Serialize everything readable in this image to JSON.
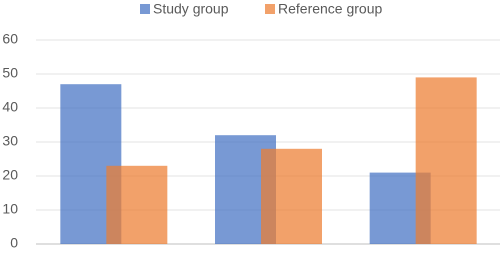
{
  "chart_data": {
    "type": "bar",
    "categories": [
      null,
      null,
      null
    ],
    "series": [
      {
        "name": "Study group",
        "color": "#4472c4",
        "values": [
          47,
          32,
          21
        ]
      },
      {
        "name": "Reference group",
        "color": "#ed7d31",
        "values": [
          23,
          28,
          49
        ]
      }
    ],
    "ylim": [
      0,
      60
    ],
    "yticks": [
      0,
      10,
      20,
      30,
      40,
      50,
      60
    ],
    "grid": true,
    "legend": "top"
  }
}
